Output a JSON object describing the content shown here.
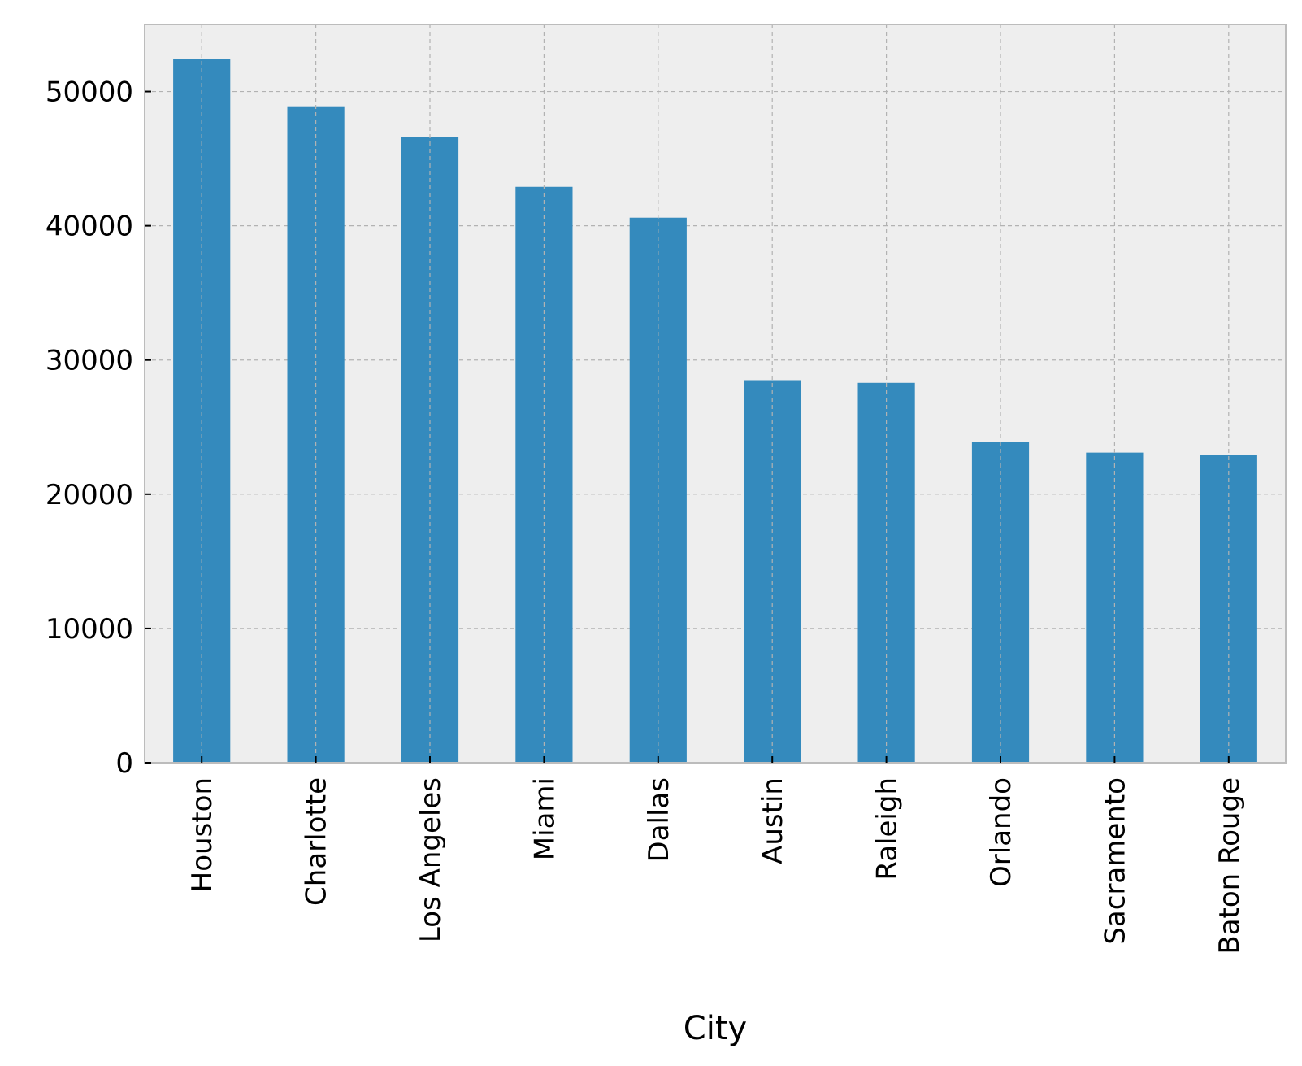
{
  "chart_data": {
    "type": "bar",
    "title": "",
    "xlabel": "City",
    "ylabel": "",
    "categories": [
      "Houston",
      "Charlotte",
      "Los Angeles",
      "Miami",
      "Dallas",
      "Austin",
      "Raleigh",
      "Orlando",
      "Sacramento",
      "Baton Rouge"
    ],
    "values": [
      52400,
      48900,
      46600,
      42900,
      40600,
      28500,
      28300,
      23900,
      23100,
      22900
    ],
    "ylim": [
      0,
      55000
    ],
    "yticks": [
      0,
      10000,
      20000,
      30000,
      40000,
      50000
    ],
    "ytick_labels": [
      "0",
      "10000",
      "20000",
      "30000",
      "40000",
      "50000"
    ],
    "grid": true,
    "legend": "none",
    "colors": {
      "bar": "#348abd",
      "plot_background": "#eeeeee",
      "grid": "#b2b2b2",
      "spine": "#bcbcbc"
    }
  }
}
